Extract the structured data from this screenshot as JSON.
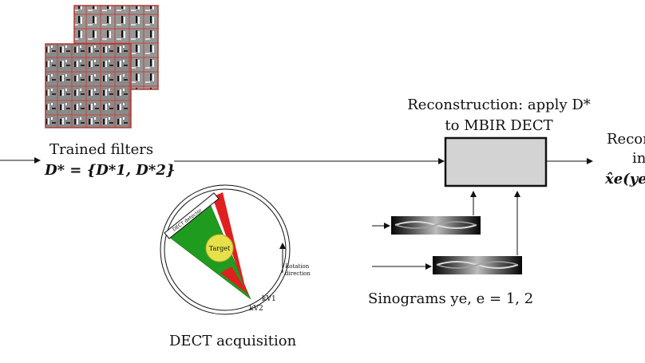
{
  "filters": {
    "caption_line1": "Trained filters",
    "caption_math": "D* = {D*1, D*2}"
  },
  "reconstruction": {
    "caption_line1": "Reconstruction: apply D*",
    "caption_line2": "to MBIR DECT"
  },
  "output": {
    "line1": "Recon",
    "line2": "in",
    "line3": "x̂e(ye"
  },
  "acquisition": {
    "caption": "DECT acquisition",
    "target_label": "Target",
    "detector_label": "DECT detector",
    "rotation_label_1": "Rotation",
    "rotation_label_2": "direction",
    "source_1": "kV1",
    "source_2": "kV2",
    "colors": {
      "beam_1": "#1f9b1f",
      "beam_2": "#e02020",
      "target": "#e6e14a"
    }
  },
  "sinograms": {
    "caption": "Sinograms ye, e = 1, 2"
  },
  "box_color": "#d3d3d3"
}
